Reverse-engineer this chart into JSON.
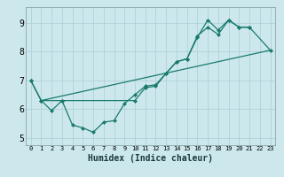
{
  "xlabel": "Humidex (Indice chaleur)",
  "bg_color": "#cce8ec",
  "grid_color": "#aacdd4",
  "line_color": "#1a7a6e",
  "xlim": [
    -0.5,
    23.5
  ],
  "ylim": [
    4.75,
    9.55
  ],
  "xticks": [
    0,
    1,
    2,
    3,
    4,
    5,
    6,
    7,
    8,
    9,
    10,
    11,
    12,
    13,
    14,
    15,
    16,
    17,
    18,
    19,
    20,
    21,
    22,
    23
  ],
  "yticks": [
    5,
    6,
    7,
    8,
    9
  ],
  "line1_x": [
    0,
    1,
    2,
    3,
    4,
    5,
    6,
    7,
    8,
    9,
    10,
    11,
    12,
    13,
    14,
    15,
    16,
    17,
    18,
    19,
    20,
    21
  ],
  "line1_y": [
    7.0,
    6.3,
    5.95,
    6.3,
    5.45,
    5.35,
    5.2,
    5.55,
    5.6,
    6.2,
    6.5,
    6.8,
    6.85,
    7.25,
    7.65,
    7.75,
    8.5,
    9.1,
    8.75,
    9.1,
    8.85,
    8.85
  ],
  "line2_x": [
    0,
    1,
    3,
    10,
    11,
    12,
    13,
    14,
    15,
    16,
    17,
    18,
    19,
    20,
    21,
    23
  ],
  "line2_y": [
    7.0,
    6.3,
    6.3,
    6.3,
    6.75,
    6.8,
    7.25,
    7.65,
    7.75,
    8.55,
    8.85,
    8.6,
    9.1,
    8.85,
    8.85,
    8.05
  ],
  "line3_x": [
    1,
    23
  ],
  "line3_y": [
    6.3,
    8.05
  ],
  "marker_size": 2.5,
  "line_width": 0.9
}
